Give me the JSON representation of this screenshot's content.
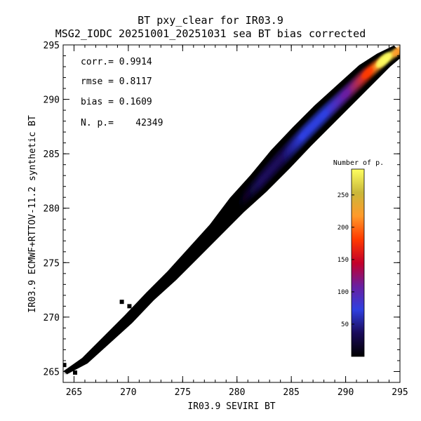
{
  "chart_data": {
    "type": "heatmap",
    "title": "BT pxy_clear for IR03.9",
    "subtitle": "MSG2_IODC 20251001_20251031 sea BT bias corrected",
    "xlabel": "IR03.9 SEVIRI BT",
    "ylabel": "IR03.9 ECMWF+RTTOV-11.2 synthetic BT",
    "xlim": [
      264,
      295
    ],
    "ylim": [
      264,
      295
    ],
    "xticks": [
      265,
      270,
      275,
      280,
      285,
      290,
      295
    ],
    "yticks": [
      265,
      270,
      275,
      280,
      285,
      290,
      295
    ],
    "stats": [
      {
        "label": "corr.= 0.9914"
      },
      {
        "label": "rmse = 0.8117"
      },
      {
        "label": "bias = 0.1609"
      },
      {
        "label": "N. p.=    42349"
      }
    ],
    "colorbar": {
      "title": "Number of p.",
      "ticks": [
        50,
        100,
        150,
        200,
        250
      ],
      "range": [
        0,
        290
      ]
    },
    "density_ridge": [
      {
        "x": 264.2,
        "y": 264.9,
        "halfwidth": 0.3,
        "level": 0.0
      },
      {
        "x": 266,
        "y": 266.0,
        "halfwidth": 0.5,
        "level": 0.0
      },
      {
        "x": 268,
        "y": 267.9,
        "halfwidth": 0.6,
        "level": 0.0
      },
      {
        "x": 270,
        "y": 269.8,
        "halfwidth": 0.7,
        "level": 0.0
      },
      {
        "x": 272,
        "y": 271.9,
        "halfwidth": 0.7,
        "level": 0.0
      },
      {
        "x": 274,
        "y": 273.8,
        "halfwidth": 0.8,
        "level": 0.01
      },
      {
        "x": 276,
        "y": 275.9,
        "halfwidth": 0.9,
        "level": 0.02
      },
      {
        "x": 278,
        "y": 278.0,
        "halfwidth": 1.0,
        "level": 0.03
      },
      {
        "x": 280,
        "y": 280.3,
        "halfwidth": 1.3,
        "level": 0.06
      },
      {
        "x": 282,
        "y": 282.3,
        "halfwidth": 1.5,
        "level": 0.1
      },
      {
        "x": 284,
        "y": 284.5,
        "halfwidth": 1.7,
        "level": 0.14
      },
      {
        "x": 286,
        "y": 286.6,
        "halfwidth": 1.7,
        "level": 0.2
      },
      {
        "x": 288,
        "y": 288.6,
        "halfwidth": 1.7,
        "level": 0.28
      },
      {
        "x": 290,
        "y": 290.5,
        "halfwidth": 1.6,
        "level": 0.4
      },
      {
        "x": 292,
        "y": 292.4,
        "halfwidth": 1.5,
        "level": 0.62
      },
      {
        "x": 293.5,
        "y": 293.6,
        "halfwidth": 1.2,
        "level": 1.0
      },
      {
        "x": 294.9,
        "y": 294.5,
        "halfwidth": 0.9,
        "level": 0.7
      }
    ],
    "isolated_points": [
      {
        "x": 264.1,
        "y": 265.6
      },
      {
        "x": 265.1,
        "y": 264.9
      },
      {
        "x": 269.4,
        "y": 271.4
      },
      {
        "x": 270.1,
        "y": 271.0
      },
      {
        "x": 277.9,
        "y": 277.9
      }
    ],
    "grid": false,
    "colors": {
      "background": "#ffffff",
      "colormap": [
        "#000000",
        "#1a0b5a",
        "#2f3fe0",
        "#6a1fa0",
        "#c4002a",
        "#ff3a00",
        "#ff9a2a",
        "#c9b83a",
        "#ffff60"
      ]
    }
  }
}
